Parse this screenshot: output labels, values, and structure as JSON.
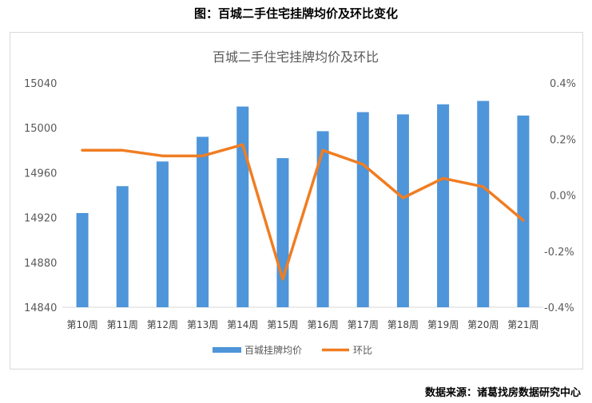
{
  "figure_title": "图：百城二手住宅挂牌均价及环比变化",
  "source": "数据来源：诸葛找房数据研究中心",
  "chart_data": {
    "type": "bar+line",
    "title": "百城二手住宅挂牌均价及环比",
    "categories": [
      "第10周",
      "第11周",
      "第12周",
      "第13周",
      "第14周",
      "第15周",
      "第16周",
      "第17周",
      "第18周",
      "第19周",
      "第20周",
      "第21周"
    ],
    "series": [
      {
        "name": "百城挂牌均价",
        "type": "bar",
        "axis": "left",
        "color": "#4e95d9",
        "values": [
          14924,
          14948,
          14970,
          14992,
          15019,
          14973,
          14997,
          15014,
          15012,
          15021,
          15024,
          15011
        ]
      },
      {
        "name": "环比",
        "type": "line",
        "axis": "right",
        "color": "#f07d22",
        "values": [
          0.16,
          0.16,
          0.14,
          0.14,
          0.18,
          -0.3,
          0.16,
          0.11,
          -0.01,
          0.06,
          0.03,
          -0.09
        ]
      }
    ],
    "y_left": {
      "range": [
        14840,
        15040
      ],
      "ticks": [
        "14840",
        "14880",
        "14920",
        "14960",
        "15000",
        "15040"
      ]
    },
    "y_right": {
      "range": [
        -0.4,
        0.4
      ],
      "unit": "%",
      "ticks": [
        "-0.4%",
        "-0.2%",
        "0.0%",
        "0.2%",
        "0.4%"
      ]
    },
    "grid": false,
    "legend": "bottom"
  }
}
